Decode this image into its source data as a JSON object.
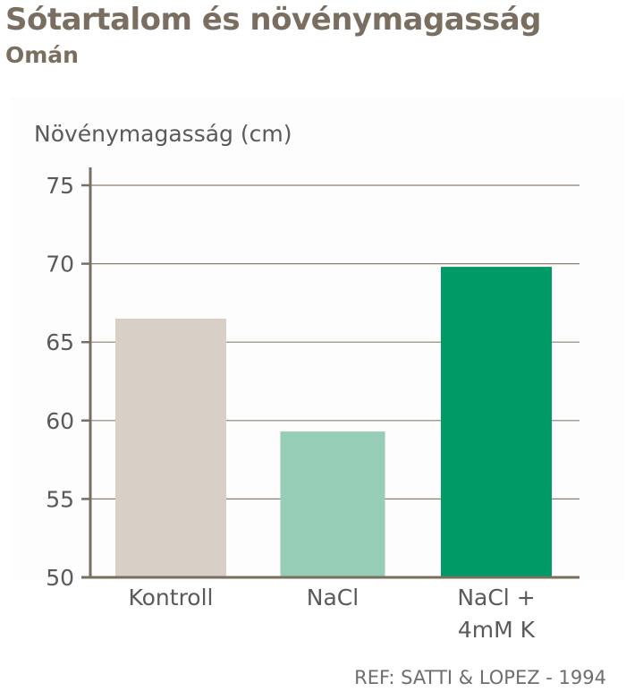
{
  "title": "Sótartalom és növénymagasság",
  "subtitle": "Omán",
  "reference": "REF: SATTI & LOPEZ - 1994",
  "colors": {
    "title": "#7a6e60",
    "axis": "#7a6e60",
    "grid": "#8a7e70",
    "text": "#5a5a5a",
    "bars": [
      "#d8cfc6",
      "#96cdb6",
      "#009a66"
    ]
  },
  "chart_data": {
    "type": "bar",
    "ylabel": "Növénymagasság (cm)",
    "categories": [
      [
        "Kontroll"
      ],
      [
        "NaCl"
      ],
      [
        "NaCl +",
        "4mM K"
      ]
    ],
    "values": [
      66.5,
      59.3,
      69.8
    ],
    "ylim": [
      50,
      75
    ],
    "yticks": [
      "50",
      "55",
      "60",
      "65",
      "70",
      "75"
    ],
    "grid": true,
    "legend": "none"
  }
}
